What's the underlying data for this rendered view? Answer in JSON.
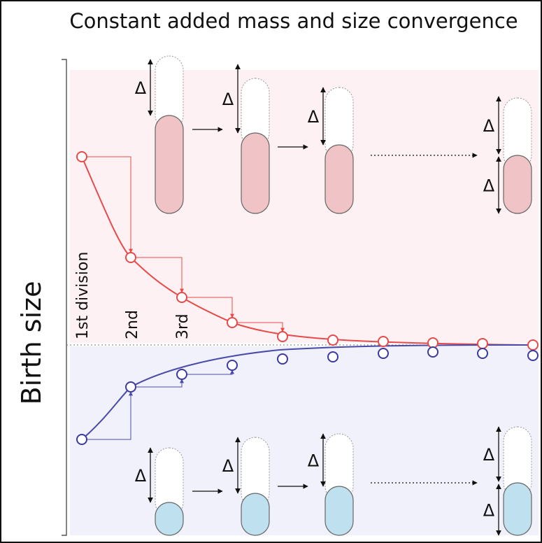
{
  "title": "Constant added mass and size convergence",
  "y_axis_label": "Birth size",
  "division_labels": [
    "1st division",
    "2nd",
    "3rd"
  ],
  "top_row": {
    "deltas": [
      "Δ",
      "Δ",
      "Δ",
      "Δ",
      "Δ"
    ]
  },
  "bottom_row": {
    "deltas": [
      "Δ",
      "Δ",
      "Δ",
      "Δ",
      "Δ"
    ]
  }
}
